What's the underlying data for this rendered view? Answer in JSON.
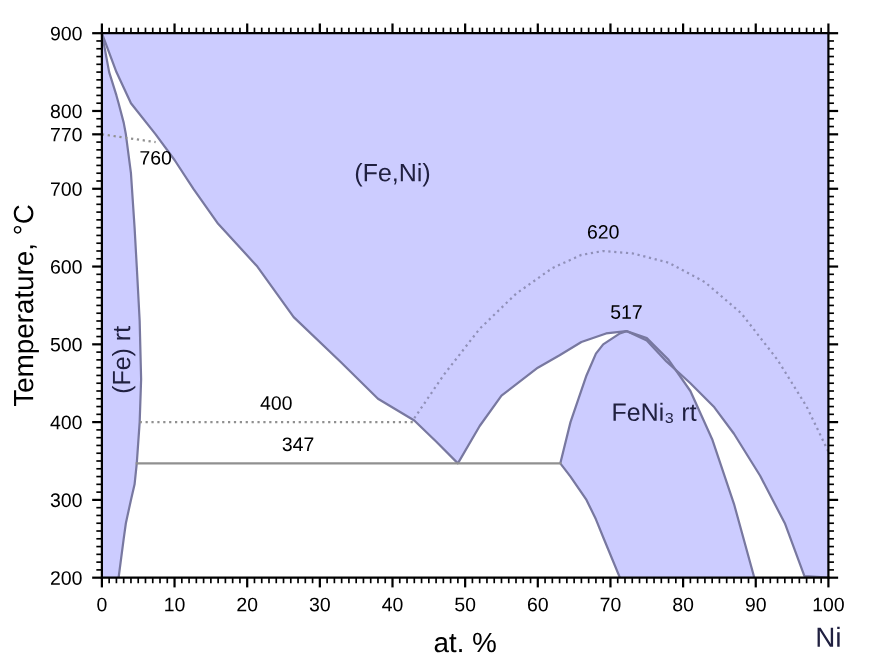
{
  "chart_data": {
    "type": "line",
    "xlabel": "at. %",
    "ylabel": "Temperature, °C",
    "xlim": [
      0,
      100
    ],
    "ylim": [
      200,
      900
    ],
    "xticks": [
      0,
      10,
      20,
      30,
      40,
      50,
      60,
      70,
      80,
      90,
      100
    ],
    "yticks": [
      200,
      300,
      400,
      500,
      600,
      700,
      {
        "value": 770,
        "label": "770"
      },
      800,
      900
    ],
    "grid": false,
    "legend": false,
    "line_style": "solid",
    "series": [
      {
        "color": "#7878a0",
        "x": [
          0,
          2,
          4,
          7.4,
          10,
          12.6,
          16,
          21.4,
          26.4,
          32.8,
          38,
          43,
          46,
          49,
          52,
          55,
          60,
          63,
          66,
          69.4,
          72.2,
          75,
          77.7,
          81,
          84.3,
          87,
          90.6,
          94,
          96.7,
          100
        ],
        "values": [
          900,
          850,
          810,
          770,
          737,
          700,
          655,
          600,
          535,
          478,
          430,
          402,
          375,
          347,
          395,
          434,
          470,
          486,
          503,
          514,
          517,
          505,
          478,
          450,
          419,
          385,
          331,
          270,
          202,
          200
        ]
      },
      {
        "color": "#7878a0",
        "x": [
          0,
          1,
          2,
          2.3,
          3,
          3.3,
          4,
          4.5,
          4.8,
          5.2,
          5.4,
          5.2,
          4.8,
          4.5,
          4,
          3.3,
          3,
          2.3
        ],
        "values": [
          900,
          850,
          820,
          810,
          785,
          770,
          720,
          650,
          600,
          530,
          455,
          400,
          347,
          320,
          300,
          270,
          250,
          200
        ]
      },
      {
        "color": "#7878a0",
        "x": [
          71.3,
          69,
          68,
          66.7,
          64.5,
          63.1,
          64.5,
          66.7,
          68,
          69,
          71.3,
          72.2,
          75,
          78,
          81,
          84,
          87,
          89.8
        ],
        "values": [
          200,
          252,
          275,
          300,
          330,
          347,
          400,
          460,
          488,
          500,
          514,
          517,
          508,
          480,
          440,
          378,
          295,
          200
        ]
      },
      {
        "color": "#9090b8",
        "line_style": "dotted",
        "x": [
          43,
          47,
          52,
          57,
          62,
          66,
          69,
          73,
          78,
          83,
          88,
          93,
          97,
          100
        ],
        "values": [
          405,
          460,
          520,
          565,
          598,
          615,
          620,
          617,
          605,
          580,
          540,
          480,
          420,
          362
        ]
      },
      {
        "color": "#909090",
        "line_style": "dotted",
        "x": [
          5.2,
          43
        ],
        "values": [
          400,
          400
        ]
      },
      {
        "color": "#909090",
        "x": [
          4.8,
          63.1
        ],
        "values": [
          347,
          347
        ]
      },
      {
        "color": "#909090",
        "line_style": "dotted",
        "x": [
          0,
          7.4
        ],
        "values": [
          770,
          760
        ]
      }
    ],
    "annotations": [
      {
        "text": "760",
        "x": 7.4,
        "y": 760
      },
      {
        "text": "620",
        "x": 69,
        "y": 620
      },
      {
        "text": "517",
        "x": 72.2,
        "y": 517
      },
      {
        "text": "400",
        "x": 24,
        "y": 400
      },
      {
        "text": "347",
        "x": 27,
        "y": 347
      },
      "(Fe,Ni)",
      "(Fe) rt",
      "FeNi₃ rt",
      "Ni"
    ]
  }
}
